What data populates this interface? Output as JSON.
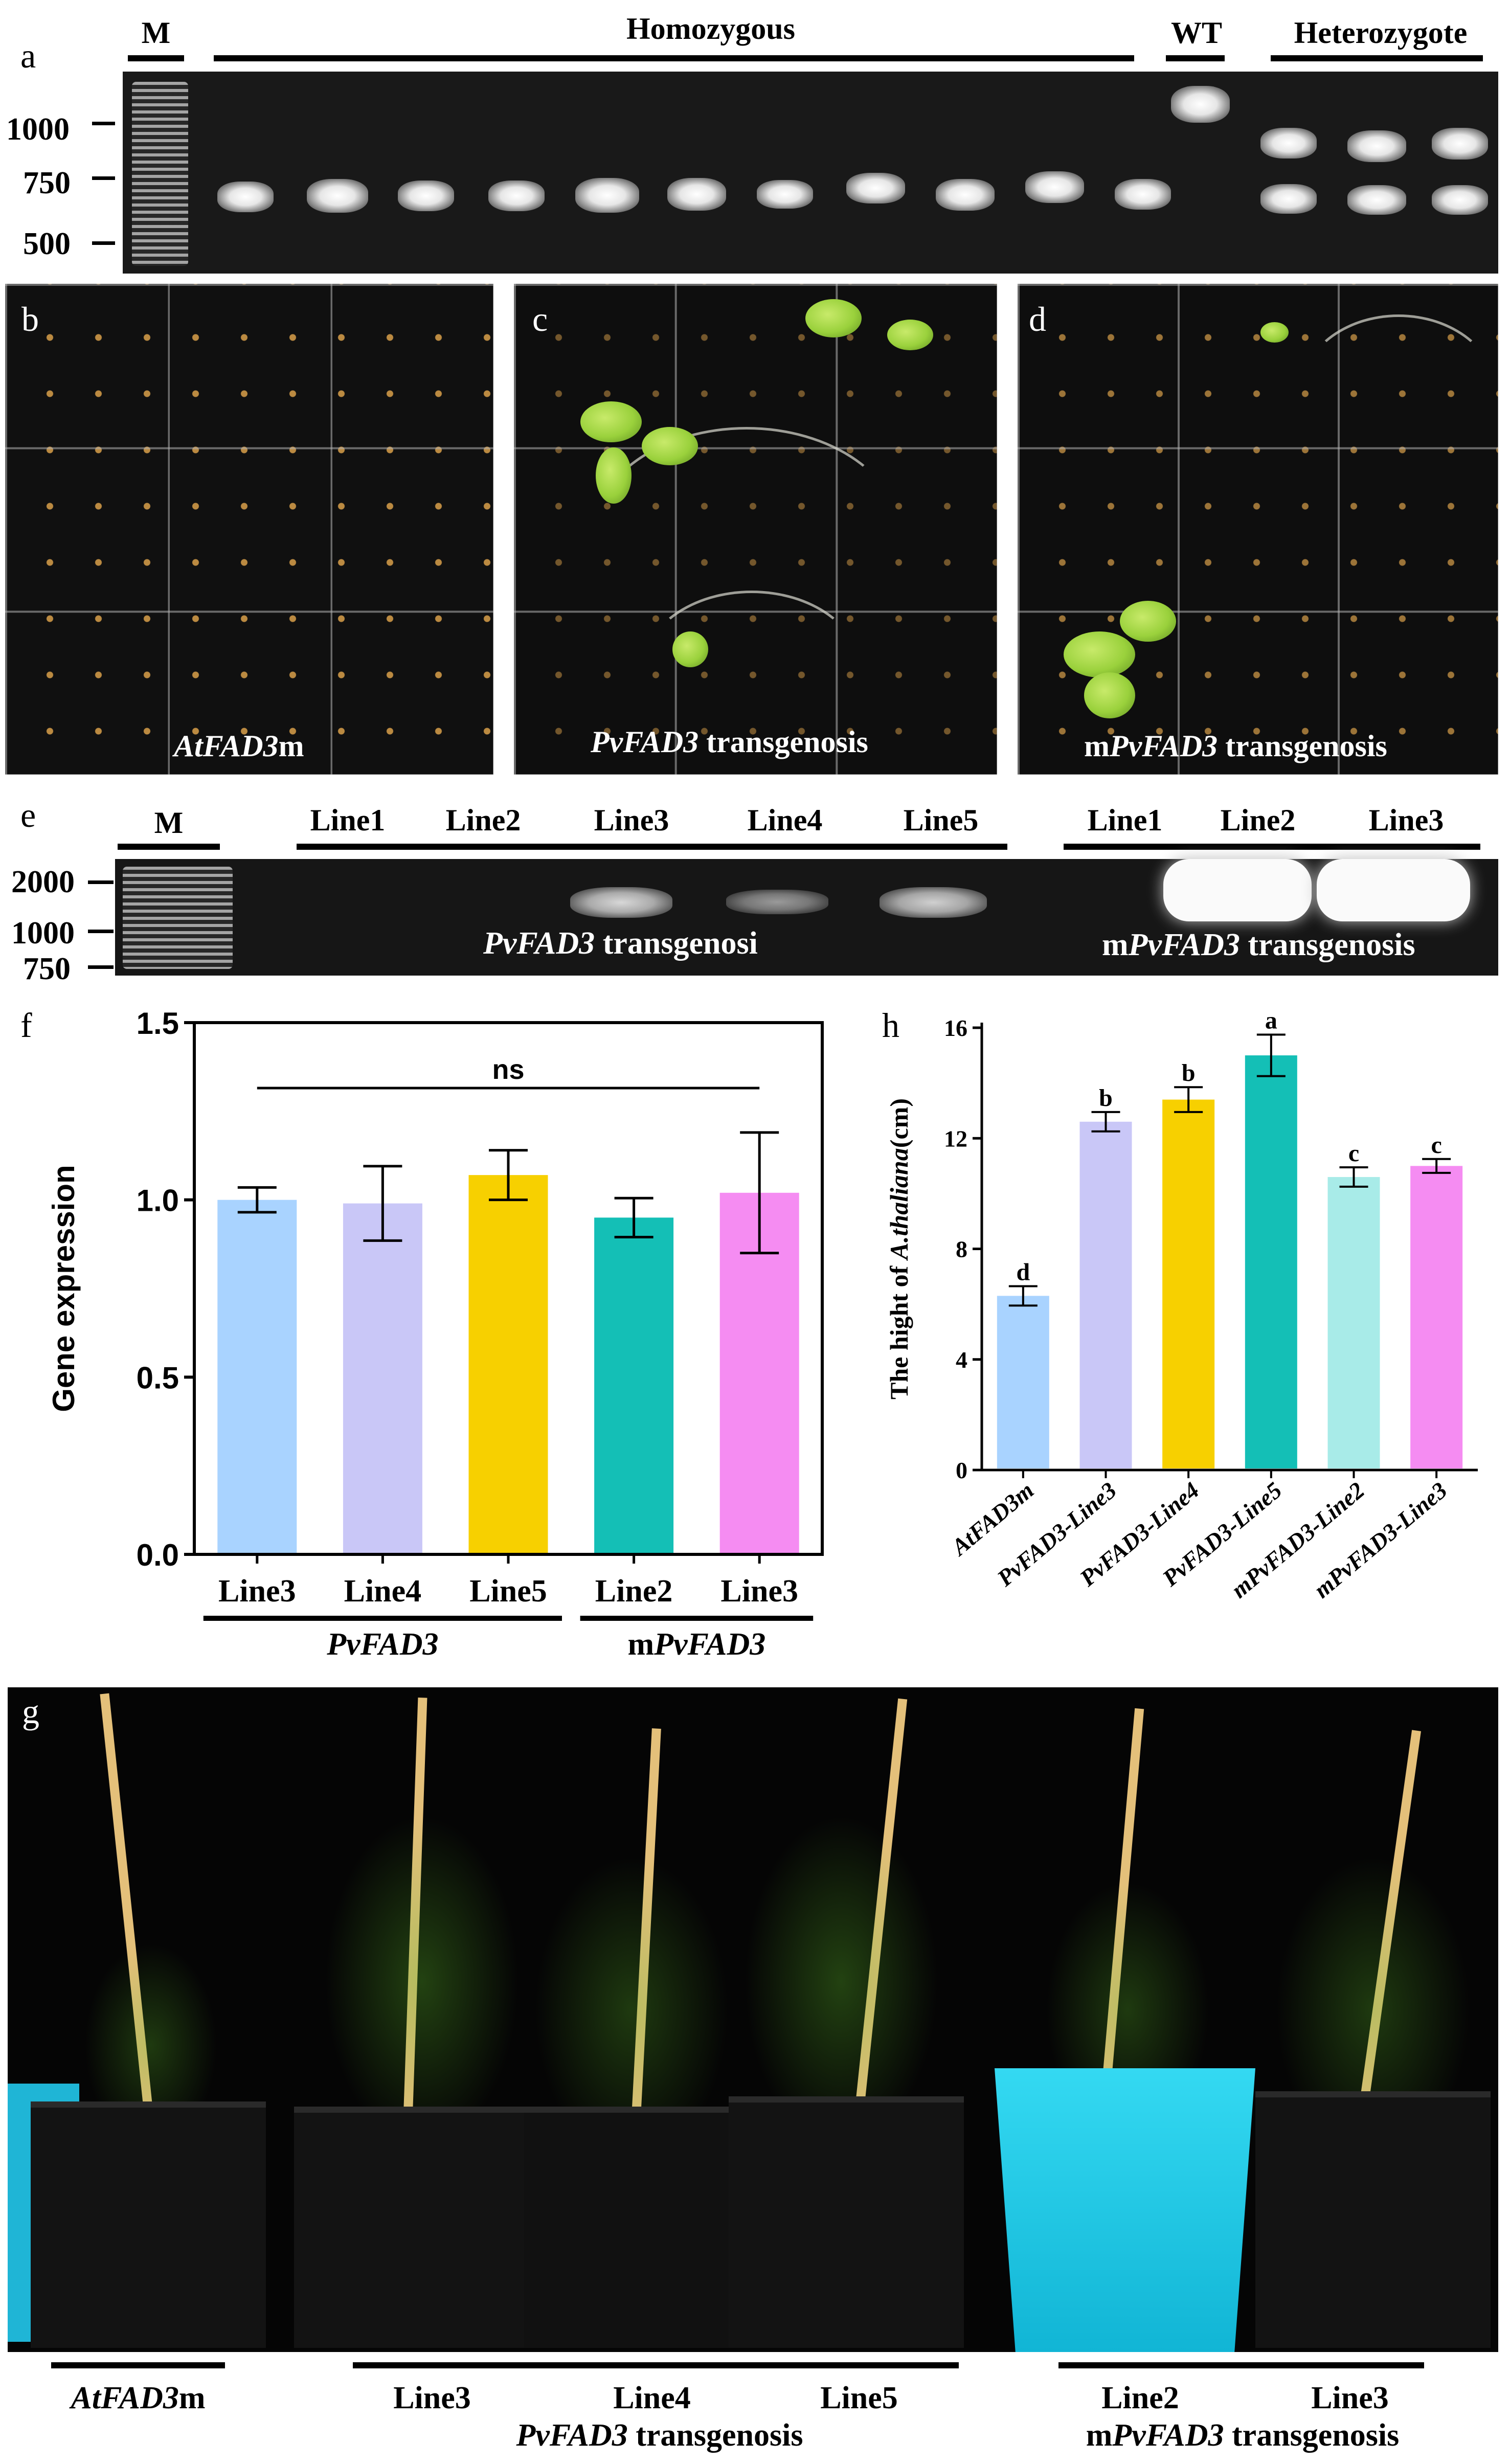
{
  "panel_a": {
    "letter": "a",
    "headers": {
      "marker": "M",
      "homozygous": "Homozygous",
      "wt": "WT",
      "heterozygote": "Heterozygote"
    },
    "size_labels": [
      "1000",
      "750",
      "500"
    ]
  },
  "panel_b": {
    "letter": "b",
    "label_italic": "AtFAD3",
    "label_rest": "m"
  },
  "panel_c": {
    "letter": "c",
    "label_italic": "PvFAD3",
    "label_rest": " transgenosis"
  },
  "panel_d": {
    "letter": "d",
    "label_prefix": "m",
    "label_italic": "PvFAD3",
    "label_rest": " transgenosis"
  },
  "panel_e": {
    "letter": "e",
    "marker": "M",
    "lanes_pv": [
      "Line1",
      "Line2",
      "Line3",
      "Line4",
      "Line5"
    ],
    "lanes_mpv": [
      "Line1",
      "Line2",
      "Line3"
    ],
    "size_labels": [
      "2000",
      "1000",
      "750"
    ],
    "group_pv_italic": "PvFAD3",
    "group_pv_rest": " transgenosi",
    "group_mpv_prefix": "m",
    "group_mpv_italic": "PvFAD3",
    "group_mpv_rest": " transgenosis"
  },
  "panel_g": {
    "letter": "g",
    "labels": {
      "at_italic": "AtFAD3",
      "at_rest": "m",
      "pv_lines": [
        "Line3",
        "Line4",
        "Line5"
      ],
      "pv_group_italic": "PvFAD3",
      "pv_group_rest": " transgenosis",
      "mpv_lines": [
        "Line2",
        "Line3"
      ],
      "mpv_group_prefix": "m",
      "mpv_group_italic": "PvFAD3",
      "mpv_group_rest": " transgenosis"
    }
  },
  "colors": {
    "light_blue": "#a9d3ff",
    "lavender": "#c9c7f7",
    "gold": "#f7d000",
    "teal": "#14bfb6",
    "pink": "#f58cf2",
    "light_teal": "#a8ebe8"
  },
  "chart_data": [
    {
      "panel": "f",
      "type": "bar",
      "ylabel": "Gene expression",
      "ylim": [
        0,
        1.5
      ],
      "yticks": [
        "0.0",
        "0.5",
        "1.0",
        "1.5"
      ],
      "categories": [
        "Line3",
        "Line4",
        "Line5",
        "Line2",
        "Line3"
      ],
      "values": [
        1.0,
        0.99,
        1.07,
        0.95,
        1.02
      ],
      "errors": [
        0.035,
        0.105,
        0.07,
        0.055,
        0.17
      ],
      "bar_colors": [
        "#a9d3ff",
        "#c9c7f7",
        "#f7d000",
        "#14bfb6",
        "#f58cf2"
      ],
      "groups": [
        {
          "prefix": "",
          "italic": "PvFAD3",
          "span": [
            0,
            2
          ]
        },
        {
          "prefix": "m",
          "italic": "PvFAD3",
          "span": [
            3,
            4
          ]
        }
      ],
      "annotation": "ns"
    },
    {
      "panel": "h",
      "type": "bar",
      "ylabel_prefix": "The hight of ",
      "ylabel_italic": "A.thaliana",
      "ylabel_suffix": "(cm)",
      "ylim": [
        0,
        16
      ],
      "yticks": [
        "0",
        "4",
        "8",
        "12",
        "16"
      ],
      "categories": [
        "AtFAD3m",
        "PvFAD3-Line3",
        "PvFAD3-Line4",
        "PvFAD3-Line5",
        "mPvFAD3-Line2",
        "mPvFAD3-Line3"
      ],
      "values": [
        6.3,
        12.6,
        13.4,
        15.0,
        10.6,
        11.0
      ],
      "errors": [
        0.35,
        0.35,
        0.45,
        0.75,
        0.35,
        0.25
      ],
      "letters": [
        "d",
        "b",
        "b",
        "a",
        "c",
        "c"
      ],
      "bar_colors": [
        "#a9d3ff",
        "#c9c7f7",
        "#f7d000",
        "#14bfb6",
        "#a8ebe8",
        "#f58cf2"
      ]
    }
  ]
}
